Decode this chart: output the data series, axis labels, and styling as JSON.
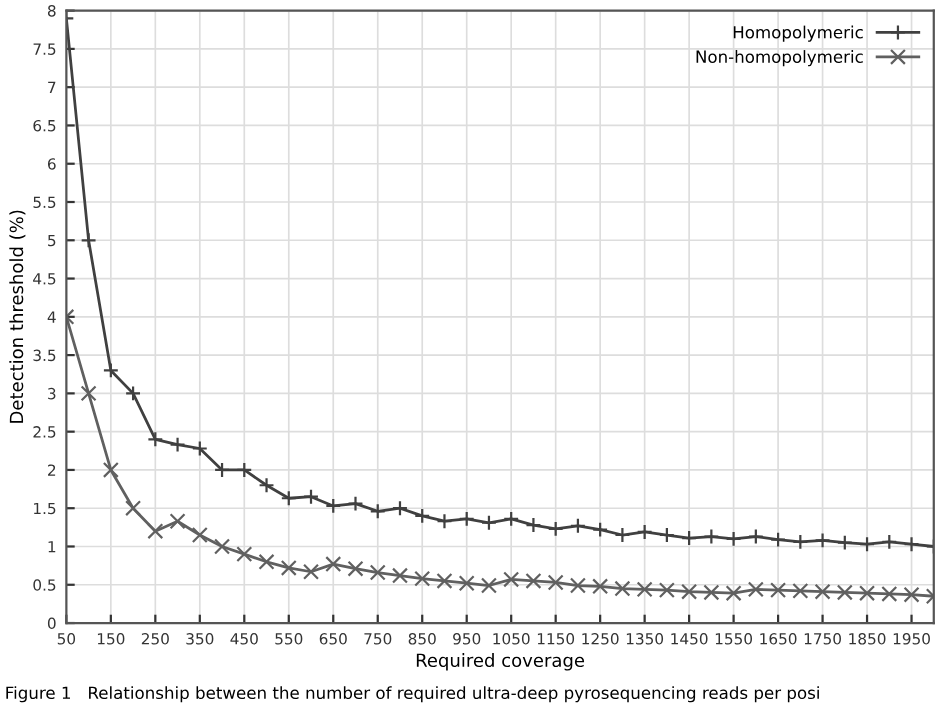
{
  "chart_data": {
    "type": "line",
    "xlabel": "Required coverage",
    "ylabel": "Detection threshold (%)",
    "x": [
      50,
      100,
      150,
      200,
      250,
      300,
      350,
      400,
      450,
      500,
      550,
      600,
      650,
      700,
      750,
      800,
      850,
      900,
      950,
      1000,
      1050,
      1100,
      1150,
      1200,
      1250,
      1300,
      1350,
      1400,
      1450,
      1500,
      1550,
      1600,
      1650,
      1700,
      1750,
      1800,
      1850,
      1900,
      1950,
      2000
    ],
    "series": [
      {
        "name": "Homopolymeric",
        "color": "#404040",
        "marker": "plus",
        "values": [
          7.9,
          5.0,
          3.3,
          3.0,
          2.4,
          2.33,
          2.28,
          2.0,
          2.0,
          1.8,
          1.63,
          1.65,
          1.53,
          1.56,
          1.46,
          1.5,
          1.4,
          1.33,
          1.36,
          1.31,
          1.36,
          1.28,
          1.23,
          1.27,
          1.22,
          1.15,
          1.19,
          1.15,
          1.11,
          1.13,
          1.1,
          1.13,
          1.09,
          1.06,
          1.08,
          1.05,
          1.03,
          1.06,
          1.03,
          1.0
        ]
      },
      {
        "name": "Non-homopolymeric",
        "color": "#606060",
        "marker": "x",
        "values": [
          4.0,
          3.0,
          2.0,
          1.5,
          1.2,
          1.33,
          1.15,
          1.0,
          0.9,
          0.8,
          0.72,
          0.67,
          0.77,
          0.71,
          0.66,
          0.62,
          0.58,
          0.55,
          0.52,
          0.49,
          0.57,
          0.55,
          0.53,
          0.49,
          0.48,
          0.45,
          0.44,
          0.43,
          0.41,
          0.4,
          0.39,
          0.44,
          0.43,
          0.42,
          0.41,
          0.4,
          0.39,
          0.38,
          0.37,
          0.35
        ]
      }
    ],
    "xlim": [
      50,
      2000
    ],
    "xticks": [
      50,
      150,
      250,
      350,
      450,
      550,
      650,
      750,
      850,
      950,
      1050,
      1150,
      1250,
      1350,
      1450,
      1550,
      1650,
      1750,
      1850,
      1950
    ],
    "ylim": [
      0,
      8
    ],
    "yticks": [
      0,
      0.5,
      1,
      1.5,
      2,
      2.5,
      3,
      3.5,
      4,
      4.5,
      5,
      5.5,
      6,
      6.5,
      7,
      7.5,
      8
    ],
    "grid": true,
    "legend": "top right",
    "line_style": "solid",
    "annotations": [
      "Figure 1   Relationship between the number of required ultra-deep pyrosequencing reads per posi"
    ]
  }
}
